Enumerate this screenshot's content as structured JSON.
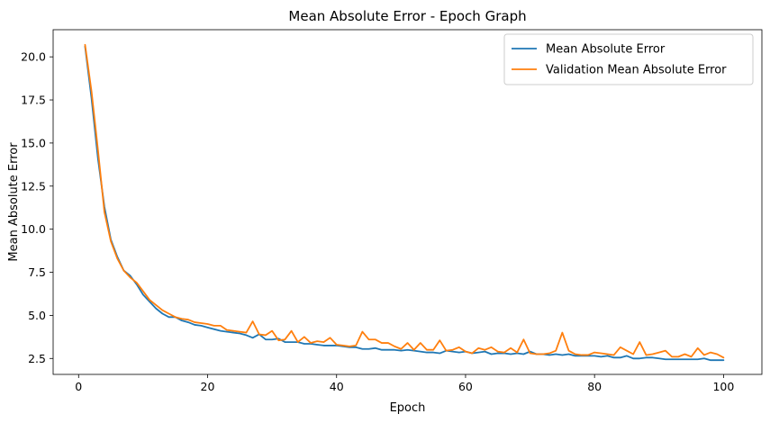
{
  "chart_data": {
    "type": "line",
    "title": "Mean Absolute Error - Epoch Graph",
    "xlabel": "Epoch",
    "ylabel": "Mean Absolute Error",
    "xlim": [
      -3.95,
      105.95
    ],
    "ylim": [
      1.575,
      21.575
    ],
    "xticks": [
      0,
      20,
      40,
      60,
      80,
      100
    ],
    "xtick_labels": [
      "0",
      "20",
      "40",
      "60",
      "80",
      "100"
    ],
    "yticks": [
      2.5,
      5.0,
      7.5,
      10.0,
      12.5,
      15.0,
      17.5,
      20.0
    ],
    "ytick_labels": [
      "2.5",
      "5.0",
      "7.5",
      "10.0",
      "12.5",
      "15.0",
      "17.5",
      "20.0"
    ],
    "grid": false,
    "legend_position": "top-right",
    "x": [
      1,
      2,
      3,
      4,
      5,
      6,
      7,
      8,
      9,
      10,
      11,
      12,
      13,
      14,
      15,
      16,
      17,
      18,
      19,
      20,
      21,
      22,
      23,
      24,
      25,
      26,
      27,
      28,
      29,
      30,
      31,
      32,
      33,
      34,
      35,
      36,
      37,
      38,
      39,
      40,
      41,
      42,
      43,
      44,
      45,
      46,
      47,
      48,
      49,
      50,
      51,
      52,
      53,
      54,
      55,
      56,
      57,
      58,
      59,
      60,
      61,
      62,
      63,
      64,
      65,
      66,
      67,
      68,
      69,
      70,
      71,
      72,
      73,
      74,
      75,
      76,
      77,
      78,
      79,
      80,
      81,
      82,
      83,
      84,
      85,
      86,
      87,
      88,
      89,
      90,
      91,
      92,
      93,
      94,
      95,
      96,
      97,
      98,
      99,
      100
    ],
    "series": [
      {
        "name": "Mean Absolute Error",
        "color": "#1f77b4",
        "values": [
          20.6,
          17.6,
          14.1,
          11.3,
          9.4,
          8.4,
          7.6,
          7.3,
          6.8,
          6.2,
          5.8,
          5.4,
          5.1,
          4.9,
          4.9,
          4.7,
          4.6,
          4.45,
          4.4,
          4.3,
          4.2,
          4.1,
          4.05,
          4.0,
          3.95,
          3.85,
          3.7,
          3.9,
          3.6,
          3.6,
          3.65,
          3.45,
          3.45,
          3.45,
          3.35,
          3.35,
          3.3,
          3.25,
          3.25,
          3.25,
          3.2,
          3.15,
          3.15,
          3.05,
          3.05,
          3.1,
          3.0,
          3.0,
          3.0,
          2.95,
          3.0,
          2.95,
          2.9,
          2.85,
          2.85,
          2.8,
          2.95,
          2.9,
          2.85,
          2.9,
          2.8,
          2.85,
          2.9,
          2.75,
          2.8,
          2.8,
          2.75,
          2.8,
          2.75,
          2.9,
          2.75,
          2.75,
          2.7,
          2.75,
          2.7,
          2.75,
          2.65,
          2.65,
          2.65,
          2.65,
          2.6,
          2.65,
          2.55,
          2.55,
          2.65,
          2.5,
          2.5,
          2.55,
          2.55,
          2.5,
          2.45,
          2.45,
          2.45,
          2.45,
          2.45,
          2.45,
          2.5,
          2.4,
          2.4,
          2.4
        ]
      },
      {
        "name": "Validation Mean Absolute Error",
        "color": "#ff7f0e",
        "values": [
          20.7,
          18.0,
          14.6,
          11.0,
          9.3,
          8.3,
          7.6,
          7.2,
          6.9,
          6.4,
          5.9,
          5.6,
          5.3,
          5.1,
          4.9,
          4.8,
          4.75,
          4.6,
          4.55,
          4.5,
          4.4,
          4.4,
          4.15,
          4.1,
          4.05,
          4.0,
          4.65,
          3.9,
          3.85,
          4.1,
          3.55,
          3.6,
          4.1,
          3.45,
          3.75,
          3.4,
          3.5,
          3.45,
          3.7,
          3.3,
          3.25,
          3.2,
          3.25,
          4.05,
          3.6,
          3.6,
          3.4,
          3.4,
          3.2,
          3.05,
          3.4,
          3.0,
          3.4,
          3.0,
          3.0,
          3.55,
          2.95,
          3.0,
          3.15,
          2.9,
          2.8,
          3.1,
          3.0,
          3.15,
          2.9,
          2.85,
          3.1,
          2.85,
          3.6,
          2.8,
          2.75,
          2.75,
          2.8,
          2.95,
          4.0,
          2.95,
          2.75,
          2.7,
          2.7,
          2.85,
          2.8,
          2.75,
          2.7,
          3.15,
          2.95,
          2.75,
          3.45,
          2.7,
          2.75,
          2.85,
          2.95,
          2.6,
          2.6,
          2.75,
          2.6,
          3.1,
          2.7,
          2.85,
          2.75,
          2.55
        ]
      }
    ]
  }
}
